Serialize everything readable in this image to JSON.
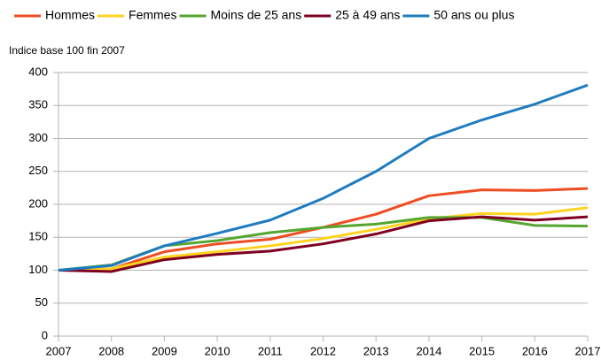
{
  "chart_data": {
    "type": "line",
    "y_label": "Indice base 100 fin 2007",
    "x": [
      2007,
      2008,
      2009,
      2010,
      2011,
      2012,
      2013,
      2014,
      2015,
      2016,
      2017
    ],
    "xlim": [
      2007,
      2017
    ],
    "xticks": [
      2007,
      2008,
      2009,
      2010,
      2011,
      2012,
      2013,
      2014,
      2015,
      2016,
      2017
    ],
    "ylim": [
      0,
      400
    ],
    "yticks": [
      0,
      50,
      100,
      150,
      200,
      250,
      300,
      350,
      400
    ],
    "grid": true,
    "legend": "top",
    "series": [
      {
        "name": "Hommes",
        "color": "#ee4d24",
        "values": [
          100,
          102,
          128,
          140,
          147,
          165,
          185,
          213,
          222,
          221,
          224
        ]
      },
      {
        "name": "Femmes",
        "color": "#ffd320",
        "values": [
          100,
          102,
          120,
          128,
          137,
          148,
          162,
          178,
          186,
          185,
          195
        ]
      },
      {
        "name": "Moins de 25 ans",
        "color": "#55a630",
        "values": [
          100,
          108,
          137,
          145,
          157,
          165,
          170,
          180,
          180,
          168,
          167
        ]
      },
      {
        "name": "25 à 49 ans",
        "color": "#7e0021",
        "values": [
          100,
          98,
          116,
          124,
          129,
          140,
          155,
          175,
          181,
          176,
          181
        ]
      },
      {
        "name": "50 ans ou plus",
        "color": "#1f7bbf",
        "values": [
          100,
          107,
          137,
          156,
          176,
          209,
          250,
          300,
          328,
          352,
          381
        ]
      }
    ]
  }
}
